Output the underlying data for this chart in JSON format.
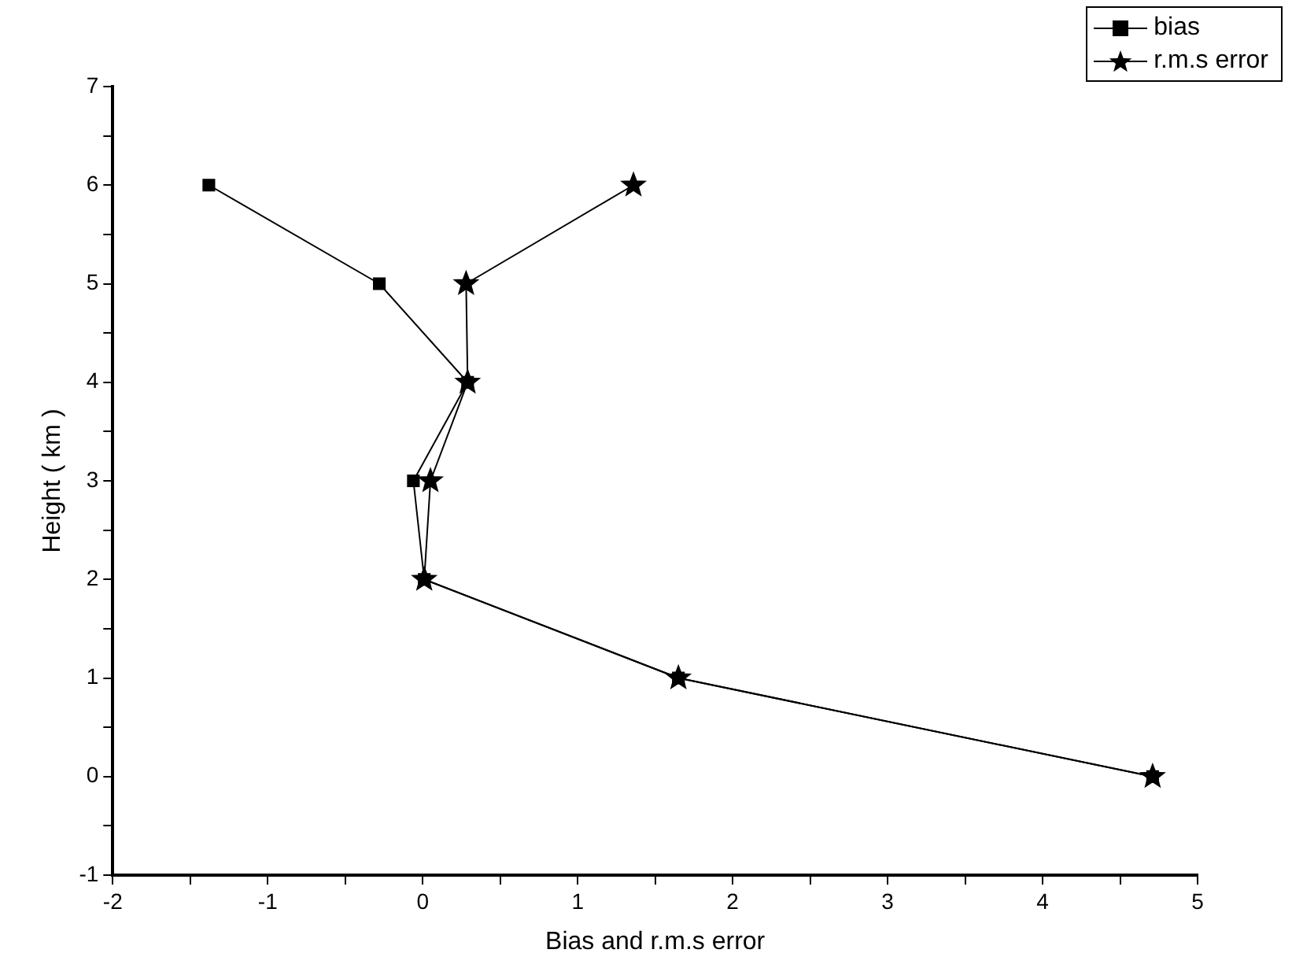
{
  "chart_data": {
    "type": "line",
    "xlabel": "Bias and r.m.s error",
    "ylabel": "Height ( km )",
    "xlim": [
      -2,
      5
    ],
    "xticks": [
      -2,
      {
        "value": -1.5,
        "label": null
      },
      -1,
      {
        "value": -0.5,
        "label": null
      },
      0,
      {
        "value": 0.5,
        "label": null
      },
      1,
      {
        "value": 1.5,
        "label": null
      },
      2,
      {
        "value": 2.5,
        "label": null
      },
      3,
      {
        "value": 3.5,
        "label": null
      },
      4,
      {
        "value": 4.5,
        "label": null
      },
      5
    ],
    "ylim": [
      -1,
      7
    ],
    "yticks": [
      -1,
      {
        "value": -0.5,
        "label": null
      },
      0,
      {
        "value": 0.5,
        "label": null
      },
      1,
      {
        "value": 1.5,
        "label": null
      },
      2,
      {
        "value": 2.5,
        "label": null
      },
      3,
      {
        "value": 3.5,
        "label": null
      },
      4,
      {
        "value": 4.5,
        "label": null
      },
      5,
      {
        "value": 5.5,
        "label": null
      },
      6,
      {
        "value": 6.5,
        "label": null
      },
      7
    ],
    "grid": false,
    "legend": "top right",
    "line_style": "solid",
    "series": [
      {
        "name": "bias",
        "color": "#000000",
        "marker": "square",
        "x": [
          4.71,
          1.65,
          0.01,
          -0.06,
          0.29,
          -0.28,
          -1.38
        ],
        "values": [
          0,
          1,
          2,
          3,
          4,
          5,
          6
        ]
      },
      {
        "name": "r.m.s error",
        "color": "#000000",
        "marker": "star",
        "x": [
          4.71,
          1.65,
          0.01,
          0.05,
          0.29,
          0.28,
          1.36
        ],
        "values": [
          0,
          1,
          2,
          3,
          4,
          5,
          6
        ]
      }
    ]
  }
}
